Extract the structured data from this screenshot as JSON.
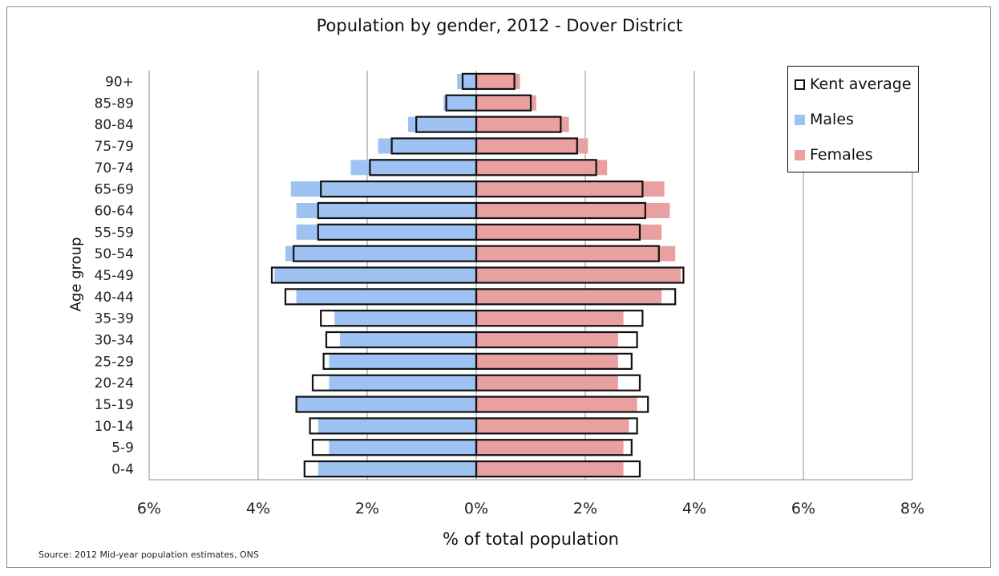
{
  "chart_data": {
    "type": "bar",
    "orientation": "horizontal",
    "title": "Population by gender, 2012 - Dover District",
    "xlabel": "% of total population",
    "ylabel": "Age group",
    "xlim": [
      -6,
      8
    ],
    "x_ticks": [
      "6%",
      "4%",
      "2%",
      "0%",
      "2%",
      "4%",
      "6%",
      "8%"
    ],
    "grid": "vertical",
    "legend_position": "top-right",
    "categories": [
      "0-4",
      "5-9",
      "10-14",
      "15-19",
      "20-24",
      "25-29",
      "30-34",
      "35-39",
      "40-44",
      "45-49",
      "50-54",
      "55-59",
      "60-64",
      "65-69",
      "70-74",
      "75-79",
      "80-84",
      "85-89",
      "90+"
    ],
    "series": [
      {
        "name": "Males",
        "color": "#9ec3f2",
        "values": [
          -2.9,
          -2.7,
          -2.9,
          -3.3,
          -2.7,
          -2.7,
          -2.5,
          -2.6,
          -3.3,
          -3.7,
          -3.5,
          -3.3,
          -3.3,
          -3.4,
          -2.3,
          -1.8,
          -1.25,
          -0.6,
          -0.35
        ]
      },
      {
        "name": "Females",
        "color": "#e8a0a0",
        "values": [
          2.7,
          2.7,
          2.8,
          2.95,
          2.6,
          2.6,
          2.6,
          2.7,
          3.4,
          3.75,
          3.65,
          3.4,
          3.55,
          3.45,
          2.4,
          2.05,
          1.7,
          1.1,
          0.8
        ]
      },
      {
        "name": "Kent average",
        "style": "outline",
        "male_values": [
          -3.15,
          -3.0,
          -3.05,
          -3.3,
          -3.0,
          -2.8,
          -2.75,
          -2.85,
          -3.5,
          -3.75,
          -3.35,
          -2.9,
          -2.9,
          -2.85,
          -1.95,
          -1.55,
          -1.1,
          -0.55,
          -0.25
        ],
        "female_values": [
          3.0,
          2.85,
          2.95,
          3.15,
          3.0,
          2.85,
          2.95,
          3.05,
          3.65,
          3.8,
          3.35,
          3.0,
          3.1,
          3.05,
          2.2,
          1.85,
          1.55,
          1.0,
          0.7
        ]
      }
    ]
  },
  "legend": {
    "kent": "Kent average",
    "males": "Males",
    "females": "Females"
  },
  "source": "Source: 2012 Mid-year population estimates, ONS"
}
